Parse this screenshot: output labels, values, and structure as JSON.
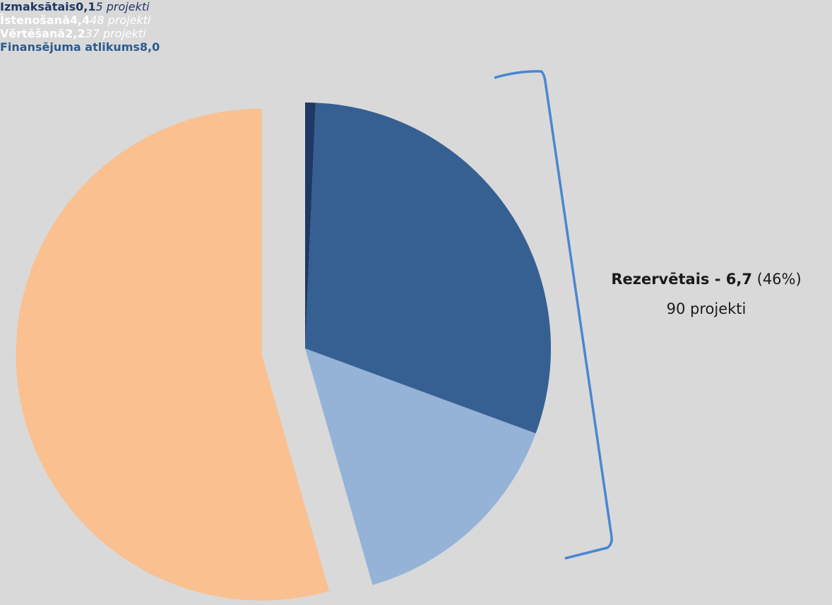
{
  "chart_data": {
    "type": "pie",
    "categories": [
      "Izmaksātais",
      "Īstenošanā",
      "Vērtēšanā",
      "Finansējuma atlikums"
    ],
    "values": [
      0.1,
      4.4,
      2.2,
      8.0
    ],
    "value_labels": [
      "0,1",
      "4,4",
      "2,2",
      "8,0"
    ],
    "project_labels": [
      "5 projekti",
      "48 projekti",
      "37 projekti"
    ],
    "colors": [
      "#1f3864",
      "#366092",
      "#95b3d7",
      "#fac090"
    ],
    "annotation": {
      "title": "Rezervētais - 6,7",
      "share": "(46%)",
      "note": "90 projekti"
    }
  }
}
